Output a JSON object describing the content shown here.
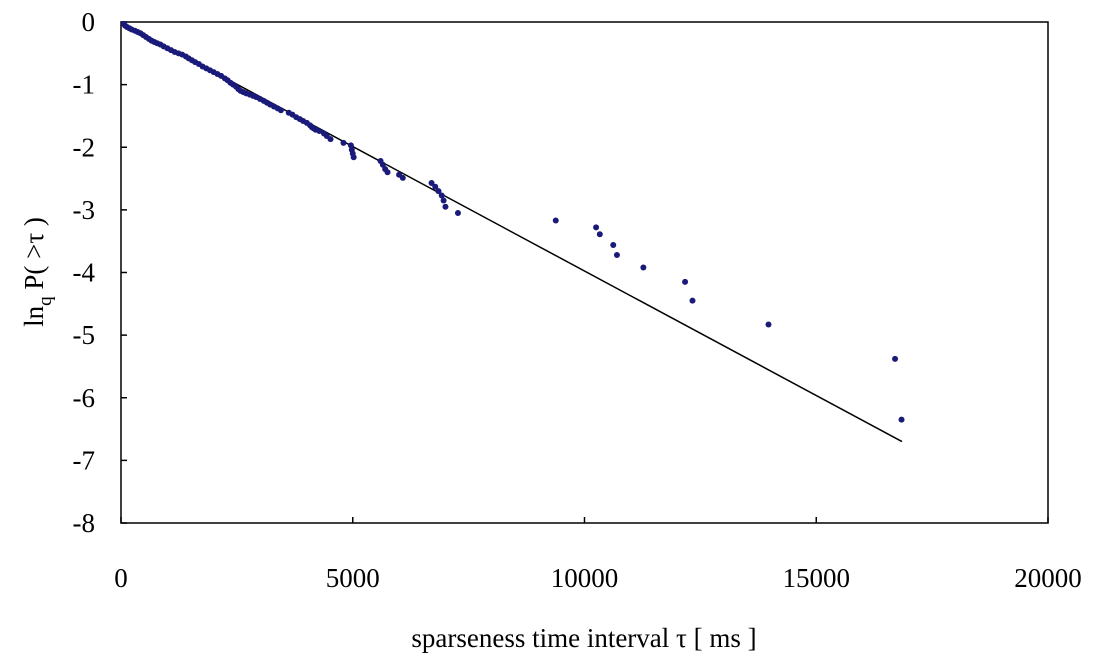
{
  "chart_data": {
    "type": "scatter",
    "title": "",
    "xlabel": "sparseness time interval τ [ ms ]",
    "ylabel_parts": {
      "main": "ln",
      "sub": "q",
      "rest": " P( >τ )"
    },
    "xlim": [
      0,
      20000
    ],
    "ylim": [
      -8,
      0
    ],
    "x_ticks": [
      "0",
      "5000",
      "10000",
      "15000",
      "20000"
    ],
    "y_ticks": [
      "0",
      "-1",
      "-2",
      "-3",
      "-4",
      "-5",
      "-6",
      "-7",
      "-8"
    ],
    "grid": false,
    "legend": "none",
    "colors": {
      "points": "#1a1a7a",
      "fit_line": "#000000",
      "axes": "#000000"
    },
    "series": [
      {
        "kind": "points",
        "x": [
          60,
          90,
          130,
          180,
          230,
          300,
          360,
          420,
          480,
          540,
          600,
          660,
          720,
          780,
          850,
          920,
          1000,
          1080,
          1160,
          1240,
          1320,
          1400,
          1460,
          1530,
          1600,
          1680,
          1760,
          1840,
          1920,
          2000,
          2080,
          2160,
          2240,
          2300,
          2360,
          2420,
          2480,
          2530,
          2580,
          2640,
          2700,
          2780,
          2850,
          2920,
          3000,
          3080,
          3150,
          3220,
          3300,
          3380,
          3450,
          3620,
          3700,
          3780,
          3860,
          3930,
          4010,
          4080,
          4120,
          4160,
          4200,
          4280,
          4380,
          4440,
          4520,
          4800,
          4960,
          4980,
          5000,
          5020,
          5600,
          5650,
          5700,
          5750,
          6000,
          6080,
          6700,
          6780,
          6850,
          6920,
          6960,
          7000,
          7270,
          9380,
          10250,
          10330,
          10620,
          10700,
          11270,
          12170,
          12330,
          13970,
          16700,
          16840
        ],
        "y": [
          -0.03,
          -0.06,
          -0.08,
          -0.1,
          -0.12,
          -0.14,
          -0.16,
          -0.18,
          -0.21,
          -0.24,
          -0.27,
          -0.3,
          -0.32,
          -0.34,
          -0.36,
          -0.39,
          -0.42,
          -0.45,
          -0.48,
          -0.5,
          -0.52,
          -0.55,
          -0.58,
          -0.61,
          -0.64,
          -0.67,
          -0.71,
          -0.74,
          -0.77,
          -0.8,
          -0.83,
          -0.86,
          -0.9,
          -0.93,
          -0.97,
          -1.0,
          -1.03,
          -1.07,
          -1.1,
          -1.12,
          -1.14,
          -1.16,
          -1.18,
          -1.2,
          -1.23,
          -1.26,
          -1.29,
          -1.32,
          -1.35,
          -1.38,
          -1.41,
          -1.45,
          -1.48,
          -1.52,
          -1.55,
          -1.58,
          -1.61,
          -1.65,
          -1.68,
          -1.7,
          -1.72,
          -1.74,
          -1.78,
          -1.82,
          -1.87,
          -1.93,
          -1.97,
          -2.04,
          -2.1,
          -2.16,
          -2.22,
          -2.28,
          -2.35,
          -2.4,
          -2.44,
          -2.49,
          -2.57,
          -2.63,
          -2.7,
          -2.77,
          -2.85,
          -2.95,
          -3.05,
          -3.17,
          -3.28,
          -3.39,
          -3.56,
          -3.72,
          -3.92,
          -4.15,
          -4.45,
          -4.83,
          -5.38,
          -6.35
        ]
      },
      {
        "kind": "line",
        "x": [
          0,
          16850
        ],
        "y": [
          0,
          -6.7
        ]
      }
    ]
  }
}
